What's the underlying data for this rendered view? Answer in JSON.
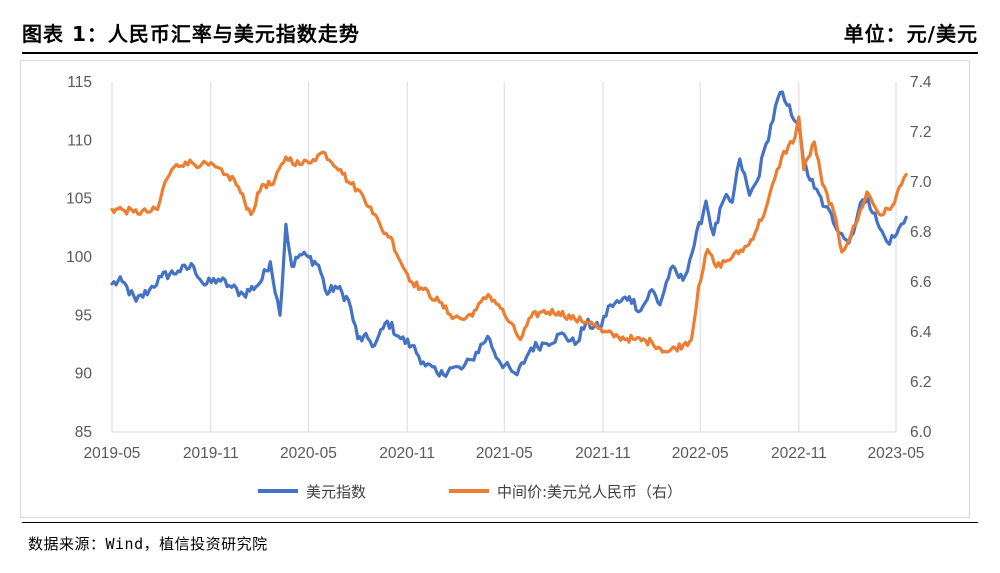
{
  "header": {
    "title": "图表 1：人民币汇率与美元指数走势",
    "unit": "单位：元/美元"
  },
  "footer": {
    "source": "数据来源：Wind，植信投资研究院"
  },
  "colors": {
    "usd_index": "#4472C4",
    "cny_mid": "#ED7D31",
    "grid": "#d9d9d9"
  },
  "chart_data": {
    "type": "line",
    "x_labels": [
      "2019-05",
      "2019-11",
      "2020-05",
      "2020-11",
      "2021-05",
      "2021-11",
      "2022-05",
      "2022-11",
      "2023-05"
    ],
    "x_range": [
      "2019-05",
      "2023-05"
    ],
    "y_left": {
      "ticks": [
        "85",
        "90",
        "95",
        "100",
        "105",
        "110",
        "115"
      ],
      "ylim": [
        85,
        115
      ]
    },
    "y_right": {
      "ticks": [
        "6.0",
        "6.2",
        "6.4",
        "6.6",
        "6.8",
        "7.0",
        "7.2",
        "7.4"
      ],
      "ylim": [
        6.0,
        7.4
      ]
    },
    "grid": "vertical",
    "legend_position": "bottom",
    "series": [
      {
        "name": "美元指数",
        "axis": "left",
        "color": "#4472C4",
        "points": [
          [
            "2019-05-01",
            97.7
          ],
          [
            "2019-05-20",
            97.9
          ],
          [
            "2019-06-15",
            96.2
          ],
          [
            "2019-07-10",
            97.2
          ],
          [
            "2019-08-01",
            98.3
          ],
          [
            "2019-09-01",
            98.8
          ],
          [
            "2019-09-30",
            99.2
          ],
          [
            "2019-10-20",
            97.6
          ],
          [
            "2019-11-15",
            98.1
          ],
          [
            "2019-12-10",
            97.4
          ],
          [
            "2020-01-01",
            96.8
          ],
          [
            "2020-02-01",
            97.8
          ],
          [
            "2020-02-20",
            99.6
          ],
          [
            "2020-03-09",
            95.0
          ],
          [
            "2020-03-20",
            102.8
          ],
          [
            "2020-03-31",
            99.2
          ],
          [
            "2020-04-15",
            100.2
          ],
          [
            "2020-05-01",
            100.0
          ],
          [
            "2020-05-20",
            99.3
          ],
          [
            "2020-06-05",
            96.8
          ],
          [
            "2020-06-20",
            97.5
          ],
          [
            "2020-07-15",
            96.3
          ],
          [
            "2020-08-01",
            93.0
          ],
          [
            "2020-08-20",
            93.0
          ],
          [
            "2020-09-01",
            92.4
          ],
          [
            "2020-09-25",
            94.5
          ],
          [
            "2020-10-20",
            93.0
          ],
          [
            "2020-11-10",
            92.4
          ],
          [
            "2020-12-01",
            91.0
          ],
          [
            "2020-12-31",
            89.8
          ],
          [
            "2021-01-20",
            90.5
          ],
          [
            "2021-02-10",
            90.4
          ],
          [
            "2021-03-01",
            91.2
          ],
          [
            "2021-03-31",
            93.2
          ],
          [
            "2021-04-20",
            91.2
          ],
          [
            "2021-05-15",
            90.2
          ],
          [
            "2021-05-25",
            89.9
          ],
          [
            "2021-06-20",
            92.2
          ],
          [
            "2021-07-15",
            92.6
          ],
          [
            "2021-08-20",
            93.4
          ],
          [
            "2021-09-10",
            92.5
          ],
          [
            "2021-09-30",
            94.3
          ],
          [
            "2021-10-25",
            93.9
          ],
          [
            "2021-11-15",
            95.9
          ],
          [
            "2021-12-01",
            96.1
          ],
          [
            "2021-12-20",
            96.6
          ],
          [
            "2022-01-10",
            95.4
          ],
          [
            "2022-01-31",
            97.2
          ],
          [
            "2022-02-15",
            95.9
          ],
          [
            "2022-03-07",
            99.0
          ],
          [
            "2022-03-30",
            98.0
          ],
          [
            "2022-04-20",
            101.0
          ],
          [
            "2022-05-12",
            104.8
          ],
          [
            "2022-05-26",
            101.9
          ],
          [
            "2022-06-15",
            105.0
          ],
          [
            "2022-06-30",
            104.7
          ],
          [
            "2022-07-14",
            108.4
          ],
          [
            "2022-08-01",
            105.3
          ],
          [
            "2022-08-15",
            106.5
          ],
          [
            "2022-09-01",
            109.7
          ],
          [
            "2022-09-27",
            114.1
          ],
          [
            "2022-10-10",
            113.0
          ],
          [
            "2022-10-31",
            111.5
          ],
          [
            "2022-11-10",
            108.0
          ],
          [
            "2022-11-30",
            105.9
          ],
          [
            "2022-12-20",
            104.3
          ],
          [
            "2023-01-20",
            102.0
          ],
          [
            "2023-02-02",
            101.2
          ],
          [
            "2023-02-28",
            104.9
          ],
          [
            "2023-03-10",
            105.0
          ],
          [
            "2023-03-31",
            102.5
          ],
          [
            "2023-04-14",
            101.3
          ],
          [
            "2023-04-28",
            101.7
          ],
          [
            "2023-05-20",
            103.4
          ]
        ]
      },
      {
        "name": "中间价:美元兑人民币（右）",
        "axis": "right",
        "color": "#ED7D31",
        "points": [
          [
            "2019-05-01",
            6.89
          ],
          [
            "2019-05-20",
            6.89
          ],
          [
            "2019-06-10",
            6.88
          ],
          [
            "2019-07-05",
            6.88
          ],
          [
            "2019-07-25",
            6.89
          ],
          [
            "2019-08-08",
            7.0
          ],
          [
            "2019-08-25",
            7.06
          ],
          [
            "2019-09-15",
            7.08
          ],
          [
            "2019-10-15",
            7.07
          ],
          [
            "2019-11-10",
            7.06
          ],
          [
            "2019-11-25",
            7.03
          ],
          [
            "2019-12-15",
            7.01
          ],
          [
            "2020-01-15",
            6.87
          ],
          [
            "2020-02-05",
            6.99
          ],
          [
            "2020-02-25",
            6.99
          ],
          [
            "2020-03-20",
            7.1
          ],
          [
            "2020-04-15",
            7.07
          ],
          [
            "2020-05-10",
            7.09
          ],
          [
            "2020-05-28",
            7.12
          ],
          [
            "2020-06-30",
            7.05
          ],
          [
            "2020-07-15",
            7.0
          ],
          [
            "2020-08-01",
            6.97
          ],
          [
            "2020-08-25",
            6.9
          ],
          [
            "2020-09-15",
            6.81
          ],
          [
            "2020-10-01",
            6.78
          ],
          [
            "2020-10-20",
            6.68
          ],
          [
            "2020-11-10",
            6.6
          ],
          [
            "2020-12-01",
            6.57
          ],
          [
            "2020-12-31",
            6.52
          ],
          [
            "2021-01-20",
            6.47
          ],
          [
            "2021-02-15",
            6.45
          ],
          [
            "2021-03-10",
            6.49
          ],
          [
            "2021-04-01",
            6.55
          ],
          [
            "2021-04-20",
            6.51
          ],
          [
            "2021-05-10",
            6.44
          ],
          [
            "2021-05-31",
            6.37
          ],
          [
            "2021-06-20",
            6.46
          ],
          [
            "2021-07-10",
            6.48
          ],
          [
            "2021-08-10",
            6.48
          ],
          [
            "2021-09-10",
            6.45
          ],
          [
            "2021-10-10",
            6.44
          ],
          [
            "2021-10-31",
            6.4
          ],
          [
            "2021-11-30",
            6.38
          ],
          [
            "2021-12-31",
            6.37
          ],
          [
            "2022-01-31",
            6.36
          ],
          [
            "2022-02-28",
            6.32
          ],
          [
            "2022-03-31",
            6.35
          ],
          [
            "2022-04-15",
            6.37
          ],
          [
            "2022-04-28",
            6.58
          ],
          [
            "2022-05-15",
            6.73
          ],
          [
            "2022-05-31",
            6.66
          ],
          [
            "2022-06-30",
            6.7
          ],
          [
            "2022-07-31",
            6.75
          ],
          [
            "2022-08-31",
            6.89
          ],
          [
            "2022-09-30",
            7.1
          ],
          [
            "2022-10-25",
            7.18
          ],
          [
            "2022-11-01",
            7.26
          ],
          [
            "2022-11-10",
            7.05
          ],
          [
            "2022-11-30",
            7.16
          ],
          [
            "2022-12-15",
            6.99
          ],
          [
            "2023-01-05",
            6.88
          ],
          [
            "2023-01-20",
            6.72
          ],
          [
            "2023-02-15",
            6.83
          ],
          [
            "2023-03-08",
            6.96
          ],
          [
            "2023-03-31",
            6.87
          ],
          [
            "2023-04-20",
            6.89
          ],
          [
            "2023-05-20",
            7.03
          ]
        ]
      }
    ]
  }
}
